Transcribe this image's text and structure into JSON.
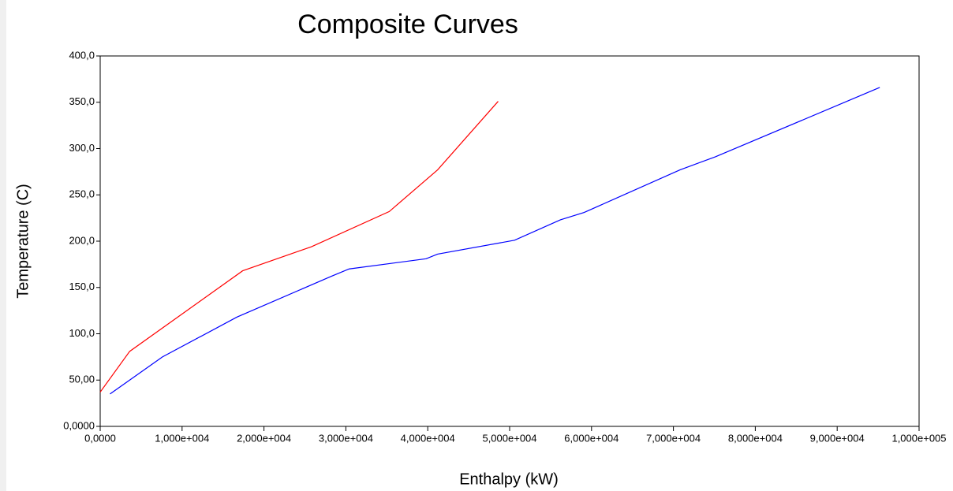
{
  "chart_data": {
    "type": "line",
    "title": "Composite Curves",
    "x_label": "Enthalpy (kW)",
    "y_label": "Temperature (C)",
    "xlim": [
      0,
      100000
    ],
    "ylim": [
      0,
      400
    ],
    "xticks": [
      {
        "value": 0,
        "label": "0,0000"
      },
      {
        "value": 10000,
        "label": "1,000e+004"
      },
      {
        "value": 20000,
        "label": "2,000e+004"
      },
      {
        "value": 30000,
        "label": "3,000e+004"
      },
      {
        "value": 40000,
        "label": "4,000e+004"
      },
      {
        "value": 50000,
        "label": "5,000e+004"
      },
      {
        "value": 60000,
        "label": "6,000e+004"
      },
      {
        "value": 70000,
        "label": "7,000e+004"
      },
      {
        "value": 80000,
        "label": "8,000e+004"
      },
      {
        "value": 90000,
        "label": "9,000e+004"
      },
      {
        "value": 100000,
        "label": "1,000e+005"
      }
    ],
    "yticks": [
      {
        "value": 0,
        "label": "0,0000"
      },
      {
        "value": 50,
        "label": "50,00"
      },
      {
        "value": 100,
        "label": "100,0"
      },
      {
        "value": 150,
        "label": "150,0"
      },
      {
        "value": 200,
        "label": "200,0"
      },
      {
        "value": 250,
        "label": "250,0"
      },
      {
        "value": 300,
        "label": "300,0"
      },
      {
        "value": 350,
        "label": "350,0"
      },
      {
        "value": 400,
        "label": "400,0"
      }
    ],
    "series": [
      {
        "color": "#ff0000",
        "x": [
          0,
          3600,
          17400,
          25800,
          35300,
          41200,
          48600
        ],
        "values": [
          37,
          81,
          168,
          194,
          232,
          277,
          351
        ]
      },
      {
        "color": "#0000ff",
        "x": [
          1200,
          7600,
          16700,
          28200,
          30400,
          39800,
          41200,
          50600,
          56200,
          59100,
          70800,
          75100,
          95200
        ],
        "values": [
          35,
          75,
          118,
          162,
          170,
          181,
          186,
          201,
          223,
          231,
          277,
          291,
          366
        ]
      }
    ]
  }
}
